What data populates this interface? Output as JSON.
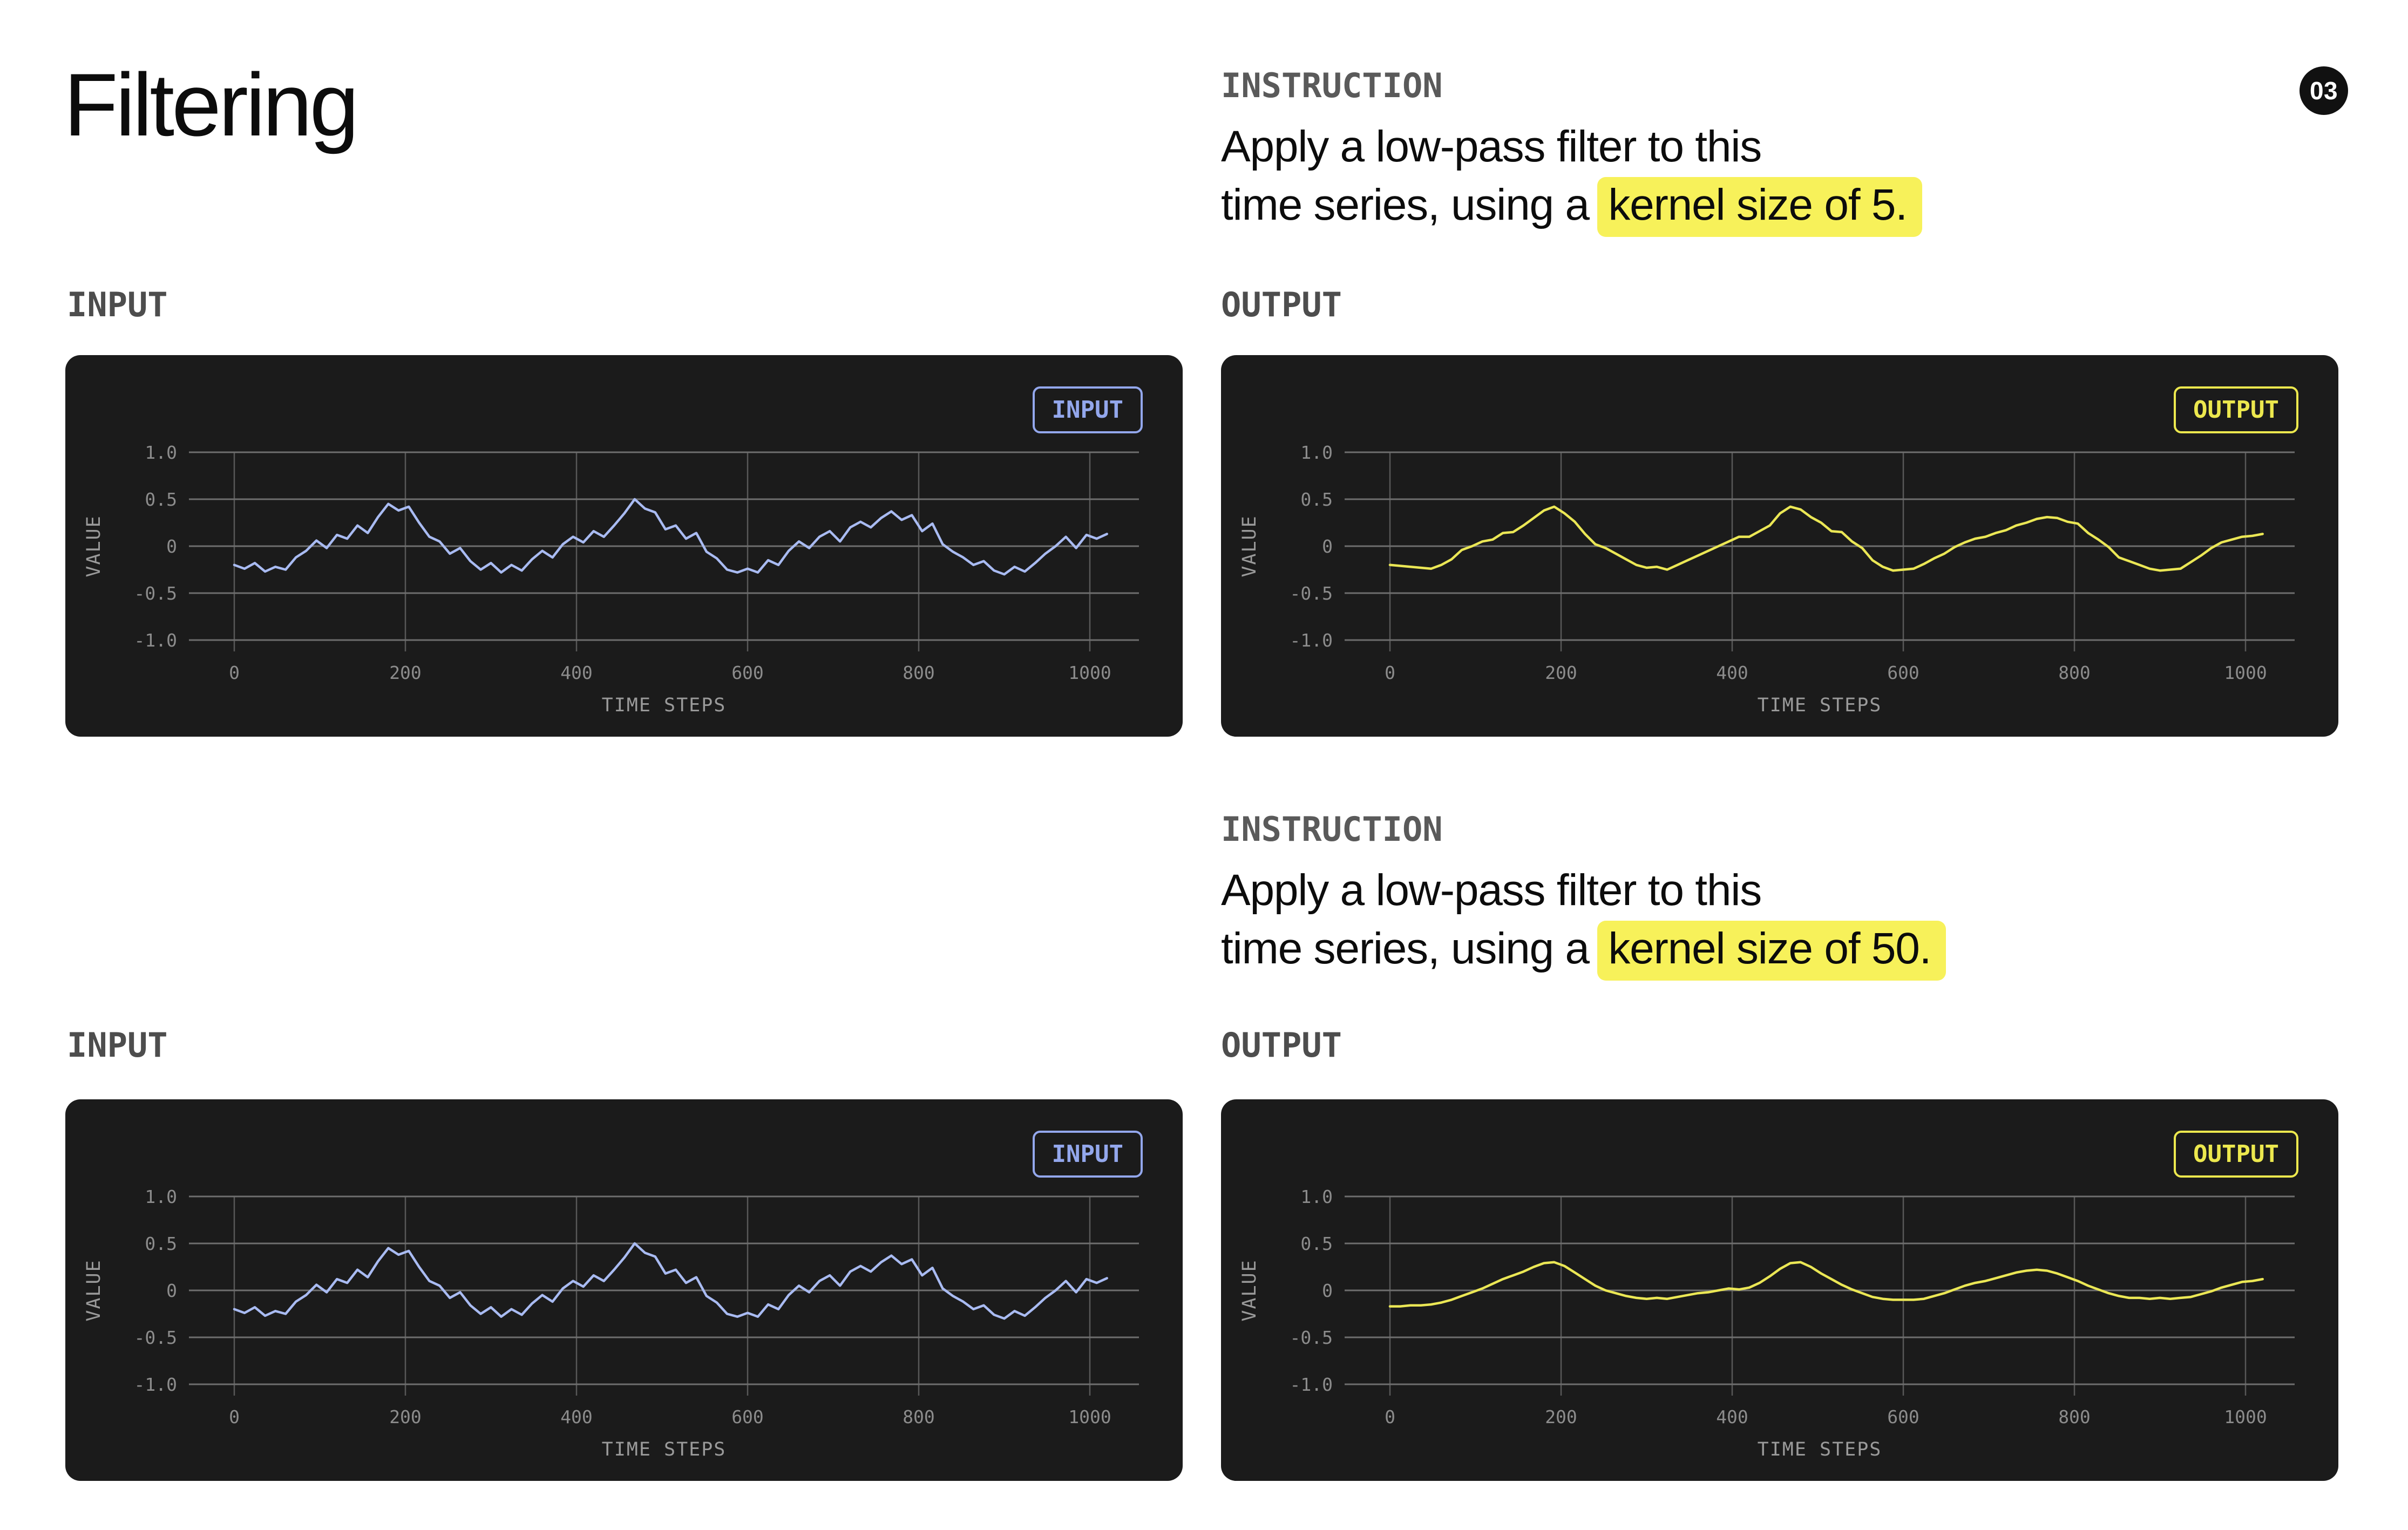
{
  "page": {
    "title": "Filtering",
    "badge": "03"
  },
  "labels": {
    "input": "INPUT",
    "output": "OUTPUT",
    "instruction": "INSTRUCTION"
  },
  "instructions": [
    {
      "label": "INSTRUCTION",
      "line1": "Apply a low-pass filter to this",
      "line2_prefix": "time series, using a ",
      "highlight": "kernel size of 5."
    },
    {
      "label": "INSTRUCTION",
      "line1": "Apply a low-pass filter to this",
      "line2_prefix": "time series, using a ",
      "highlight": "kernel size of 50."
    }
  ],
  "colors": {
    "page_bg": "#ffffff",
    "panel_bg": "#1b1b1b",
    "highlight": "#f7f15a",
    "input_line": "#a9bbf2",
    "input_accent": "#93a7ec",
    "output_line": "#ebe755",
    "output_accent": "#ece84e",
    "grid_h": "#6e6e6e",
    "grid_v": "#585858",
    "tick_text": "#8c8c8c",
    "axis_text": "#9a9a9a",
    "badge_bg": "#111111"
  },
  "chart_data": [
    {
      "type": "line",
      "name": "input-series-top",
      "legend": "INPUT",
      "color": "#a9bbf2",
      "legend_color": "#93a7ec",
      "xlabel": "TIME STEPS",
      "ylabel": "VALUE",
      "xticks": [
        0,
        200,
        400,
        600,
        800,
        1000
      ],
      "yticks": [
        {
          "v": 1,
          "label": "1.0"
        },
        {
          "v": 0.5,
          "label": "0.5"
        },
        {
          "v": 0,
          "label": "0"
        },
        {
          "v": -0.5,
          "label": "-0.5"
        },
        {
          "v": -1,
          "label": "-1.0"
        }
      ],
      "ylim": [
        -1.25,
        1.25
      ],
      "x_start": 0,
      "x_step": 12,
      "values": [
        -0.2,
        -0.24,
        -0.18,
        -0.27,
        -0.22,
        -0.25,
        -0.12,
        -0.05,
        0.06,
        -0.02,
        0.12,
        0.08,
        0.22,
        0.14,
        0.31,
        0.45,
        0.38,
        0.42,
        0.25,
        0.1,
        0.05,
        -0.08,
        -0.02,
        -0.16,
        -0.25,
        -0.18,
        -0.28,
        -0.2,
        -0.26,
        -0.14,
        -0.05,
        -0.12,
        0.02,
        0.1,
        0.04,
        0.16,
        0.1,
        0.22,
        0.35,
        0.5,
        0.4,
        0.36,
        0.18,
        0.22,
        0.08,
        0.14,
        -0.06,
        -0.13,
        -0.25,
        -0.28,
        -0.24,
        -0.28,
        -0.15,
        -0.2,
        -0.05,
        0.05,
        -0.02,
        0.1,
        0.16,
        0.05,
        0.2,
        0.26,
        0.2,
        0.3,
        0.37,
        0.28,
        0.33,
        0.16,
        0.24,
        0.02,
        -0.06,
        -0.12,
        -0.2,
        -0.16,
        -0.26,
        -0.3,
        -0.22,
        -0.27,
        -0.18,
        -0.08,
        0.0,
        0.1,
        -0.02,
        0.12,
        0.08,
        0.13
      ]
    },
    {
      "type": "line",
      "name": "output-series-kernel-5",
      "legend": "OUTPUT",
      "color": "#ebe755",
      "legend_color": "#ece84e",
      "xlabel": "TIME STEPS",
      "ylabel": "VALUE",
      "xticks": [
        0,
        200,
        400,
        600,
        800,
        1000
      ],
      "yticks": [
        {
          "v": 1,
          "label": "1.0"
        },
        {
          "v": 0.5,
          "label": "0.5"
        },
        {
          "v": 0,
          "label": "0"
        },
        {
          "v": -0.5,
          "label": "-0.5"
        },
        {
          "v": -1,
          "label": "-1.0"
        }
      ],
      "ylim": [
        -1.25,
        1.25
      ],
      "x_start": 0,
      "x_step": 12,
      "values": [
        -0.2,
        -0.21,
        -0.22,
        -0.23,
        -0.24,
        -0.2,
        -0.14,
        -0.04,
        0.0,
        0.05,
        0.07,
        0.14,
        0.15,
        0.22,
        0.3,
        0.38,
        0.42,
        0.35,
        0.26,
        0.13,
        0.02,
        -0.02,
        -0.08,
        -0.14,
        -0.2,
        -0.23,
        -0.22,
        -0.25,
        -0.2,
        -0.15,
        -0.1,
        -0.05,
        0.0,
        0.05,
        0.1,
        0.1,
        0.16,
        0.22,
        0.35,
        0.42,
        0.39,
        0.31,
        0.25,
        0.16,
        0.15,
        0.05,
        -0.02,
        -0.15,
        -0.22,
        -0.26,
        -0.25,
        -0.24,
        -0.19,
        -0.13,
        -0.08,
        -0.01,
        0.04,
        0.08,
        0.1,
        0.14,
        0.17,
        0.22,
        0.25,
        0.29,
        0.31,
        0.3,
        0.26,
        0.24,
        0.14,
        0.07,
        -0.01,
        -0.12,
        -0.16,
        -0.2,
        -0.24,
        -0.26,
        -0.25,
        -0.24,
        -0.17,
        -0.1,
        -0.02,
        0.04,
        0.07,
        0.1,
        0.11,
        0.13
      ]
    },
    {
      "type": "line",
      "name": "input-series-bottom",
      "legend": "INPUT",
      "color": "#a9bbf2",
      "legend_color": "#93a7ec",
      "xlabel": "TIME STEPS",
      "ylabel": "VALUE",
      "xticks": [
        0,
        200,
        400,
        600,
        800,
        1000
      ],
      "yticks": [
        {
          "v": 1,
          "label": "1.0"
        },
        {
          "v": 0.5,
          "label": "0.5"
        },
        {
          "v": 0,
          "label": "0"
        },
        {
          "v": -0.5,
          "label": "-0.5"
        },
        {
          "v": -1,
          "label": "-1.0"
        }
      ],
      "ylim": [
        -1.25,
        1.25
      ],
      "x_start": 0,
      "x_step": 12,
      "values": [
        -0.2,
        -0.24,
        -0.18,
        -0.27,
        -0.22,
        -0.25,
        -0.12,
        -0.05,
        0.06,
        -0.02,
        0.12,
        0.08,
        0.22,
        0.14,
        0.31,
        0.45,
        0.38,
        0.42,
        0.25,
        0.1,
        0.05,
        -0.08,
        -0.02,
        -0.16,
        -0.25,
        -0.18,
        -0.28,
        -0.2,
        -0.26,
        -0.14,
        -0.05,
        -0.12,
        0.02,
        0.1,
        0.04,
        0.16,
        0.1,
        0.22,
        0.35,
        0.5,
        0.4,
        0.36,
        0.18,
        0.22,
        0.08,
        0.14,
        -0.06,
        -0.13,
        -0.25,
        -0.28,
        -0.24,
        -0.28,
        -0.15,
        -0.2,
        -0.05,
        0.05,
        -0.02,
        0.1,
        0.16,
        0.05,
        0.2,
        0.26,
        0.2,
        0.3,
        0.37,
        0.28,
        0.33,
        0.16,
        0.24,
        0.02,
        -0.06,
        -0.12,
        -0.2,
        -0.16,
        -0.26,
        -0.3,
        -0.22,
        -0.27,
        -0.18,
        -0.08,
        0.0,
        0.1,
        -0.02,
        0.12,
        0.08,
        0.13
      ]
    },
    {
      "type": "line",
      "name": "output-series-kernel-50",
      "legend": "OUTPUT",
      "color": "#ebe755",
      "legend_color": "#ece84e",
      "xlabel": "TIME STEPS",
      "ylabel": "VALUE",
      "xticks": [
        0,
        200,
        400,
        600,
        800,
        1000
      ],
      "yticks": [
        {
          "v": 1,
          "label": "1.0"
        },
        {
          "v": 0.5,
          "label": "0.5"
        },
        {
          "v": 0,
          "label": "0"
        },
        {
          "v": -0.5,
          "label": "-0.5"
        },
        {
          "v": -1,
          "label": "-1.0"
        }
      ],
      "ylim": [
        -1.25,
        1.25
      ],
      "x_start": 0,
      "x_step": 12,
      "values": [
        -0.17,
        -0.17,
        -0.16,
        -0.16,
        -0.15,
        -0.13,
        -0.1,
        -0.06,
        -0.02,
        0.02,
        0.07,
        0.12,
        0.16,
        0.2,
        0.25,
        0.29,
        0.3,
        0.26,
        0.19,
        0.12,
        0.05,
        0.0,
        -0.03,
        -0.06,
        -0.08,
        -0.09,
        -0.08,
        -0.09,
        -0.07,
        -0.05,
        -0.03,
        -0.02,
        0.0,
        0.02,
        0.01,
        0.03,
        0.08,
        0.15,
        0.23,
        0.29,
        0.3,
        0.25,
        0.18,
        0.12,
        0.06,
        0.01,
        -0.03,
        -0.07,
        -0.09,
        -0.1,
        -0.1,
        -0.1,
        -0.09,
        -0.06,
        -0.03,
        0.01,
        0.05,
        0.08,
        0.1,
        0.13,
        0.16,
        0.19,
        0.21,
        0.22,
        0.21,
        0.18,
        0.14,
        0.1,
        0.05,
        0.01,
        -0.03,
        -0.06,
        -0.08,
        -0.08,
        -0.09,
        -0.08,
        -0.09,
        -0.08,
        -0.07,
        -0.04,
        -0.01,
        0.03,
        0.06,
        0.09,
        0.1,
        0.12
      ]
    }
  ]
}
